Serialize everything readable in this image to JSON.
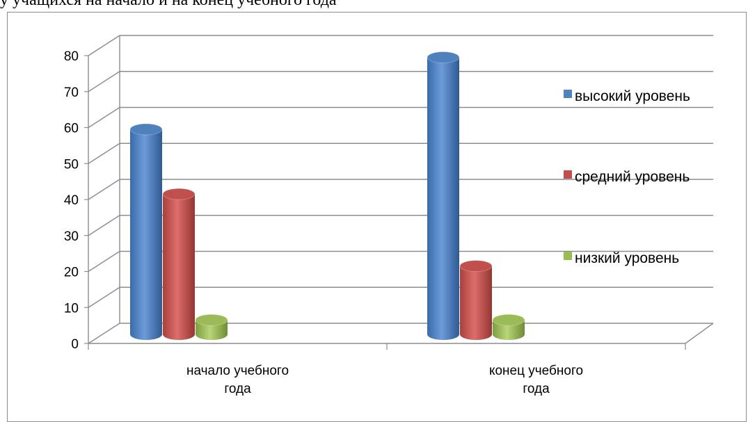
{
  "top_text": "у учащихся на начало и на конец учебного года",
  "chart_data": {
    "type": "bar",
    "title": "",
    "xlabel": "",
    "ylabel": "",
    "ylim": [
      0,
      80
    ],
    "yticks": [
      0,
      10,
      20,
      30,
      40,
      50,
      60,
      70,
      80
    ],
    "categories": [
      "начало учебного года",
      "конец учебного года"
    ],
    "category_lines": [
      [
        "начало учебного",
        "года"
      ],
      [
        "конец учебного",
        "года"
      ]
    ],
    "series": [
      {
        "name": "высокий уровень",
        "values": [
          57,
          77
        ],
        "color": "#4f81bd"
      },
      {
        "name": "средний уровень",
        "values": [
          39,
          19
        ],
        "color": "#c0504d"
      },
      {
        "name": "низкий уровень",
        "values": [
          4,
          4
        ],
        "color": "#9bbb59"
      }
    ],
    "grid": true,
    "legend": "right",
    "style": "3d-cylinder"
  }
}
